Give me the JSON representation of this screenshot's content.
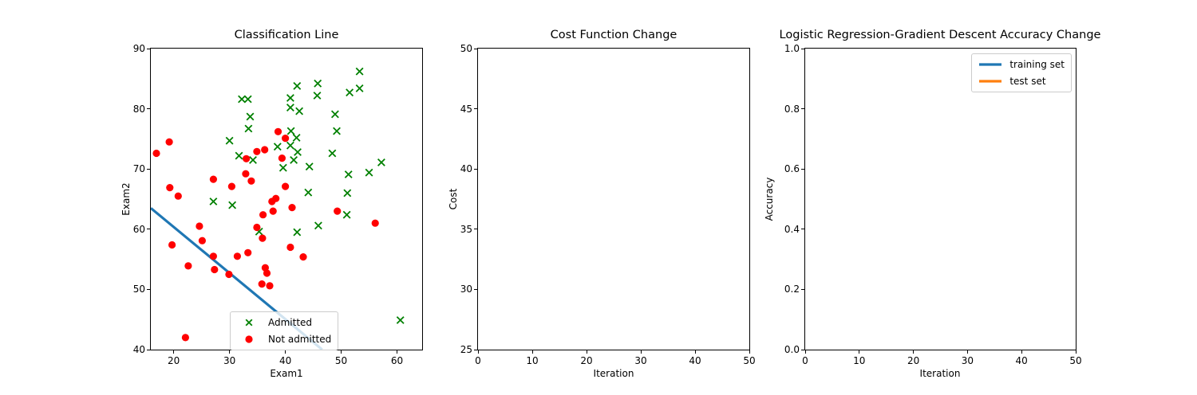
{
  "colors": {
    "admitted": "#008000",
    "not_admitted": "#ff0000",
    "decision_line": "#1f77b4",
    "training_set": "#1f77b4",
    "test_set": "#ff7f0e",
    "axis": "#000000"
  },
  "chart_data": [
    {
      "type": "scatter",
      "title": "Classification Line",
      "xlabel": "Exam1",
      "ylabel": "Exam2",
      "xlim": [
        15.9,
        64.5
      ],
      "ylim": [
        40,
        90
      ],
      "grid": false,
      "xticks": [
        {
          "v": 20,
          "label": "20"
        },
        {
          "v": 30,
          "label": "30"
        },
        {
          "v": 40,
          "label": "40"
        },
        {
          "v": 50,
          "label": "50"
        },
        {
          "v": 60,
          "label": "60"
        }
      ],
      "yticks": [
        {
          "v": 40,
          "label": "40"
        },
        {
          "v": 50,
          "label": "50"
        },
        {
          "v": 60,
          "label": "60"
        },
        {
          "v": 70,
          "label": "70"
        },
        {
          "v": 80,
          "label": "80"
        },
        {
          "v": 90,
          "label": "90"
        }
      ],
      "legend_position": "lower center-right inside",
      "series": [
        {
          "name": "Admitted",
          "marker": "x",
          "color": "#008000",
          "points": [
            [
              53.3,
              86.2
            ],
            [
              45.8,
              84.2
            ],
            [
              42.1,
              83.8
            ],
            [
              51.5,
              82.7
            ],
            [
              53.3,
              83.4
            ],
            [
              45.7,
              82.2
            ],
            [
              32.2,
              81.6
            ],
            [
              33.3,
              81.6
            ],
            [
              40.9,
              81.8
            ],
            [
              40.9,
              80.2
            ],
            [
              42.5,
              79.6
            ],
            [
              48.9,
              79.1
            ],
            [
              33.7,
              78.7
            ],
            [
              33.4,
              76.7
            ],
            [
              49.2,
              76.3
            ],
            [
              41.0,
              76.3
            ],
            [
              30.0,
              74.7
            ],
            [
              42.0,
              75.2
            ],
            [
              40.9,
              73.9
            ],
            [
              38.6,
              73.7
            ],
            [
              42.2,
              72.8
            ],
            [
              48.4,
              72.6
            ],
            [
              31.7,
              72.2
            ],
            [
              34.2,
              71.5
            ],
            [
              41.5,
              71.5
            ],
            [
              39.6,
              70.2
            ],
            [
              44.3,
              70.4
            ],
            [
              57.2,
              71.1
            ],
            [
              55.0,
              69.4
            ],
            [
              51.3,
              69.1
            ],
            [
              44.1,
              66.1
            ],
            [
              51.1,
              66.0
            ],
            [
              27.1,
              64.6
            ],
            [
              30.5,
              64.0
            ],
            [
              51.0,
              62.4
            ],
            [
              45.9,
              60.6
            ],
            [
              42.1,
              59.5
            ],
            [
              35.3,
              59.6
            ],
            [
              60.6,
              44.9
            ]
          ]
        },
        {
          "name": "Not admitted",
          "marker": "circle",
          "color": "#ff0000",
          "points": [
            [
              16.9,
              72.6
            ],
            [
              19.2,
              74.5
            ],
            [
              38.7,
              76.2
            ],
            [
              40.0,
              75.1
            ],
            [
              34.9,
              72.9
            ],
            [
              36.3,
              73.2
            ],
            [
              33.0,
              71.7
            ],
            [
              39.4,
              71.8
            ],
            [
              32.9,
              69.2
            ],
            [
              33.9,
              68.0
            ],
            [
              27.1,
              68.3
            ],
            [
              30.4,
              67.1
            ],
            [
              19.3,
              66.9
            ],
            [
              20.8,
              65.5
            ],
            [
              40.0,
              67.1
            ],
            [
              37.6,
              64.6
            ],
            [
              38.3,
              65.1
            ],
            [
              37.8,
              63.0
            ],
            [
              41.2,
              63.6
            ],
            [
              36.0,
              62.4
            ],
            [
              49.3,
              63.0
            ],
            [
              56.1,
              61.0
            ],
            [
              24.6,
              60.5
            ],
            [
              25.1,
              58.1
            ],
            [
              19.7,
              57.4
            ],
            [
              34.9,
              60.3
            ],
            [
              35.9,
              58.5
            ],
            [
              40.9,
              57.0
            ],
            [
              43.2,
              55.4
            ],
            [
              27.1,
              55.5
            ],
            [
              31.4,
              55.5
            ],
            [
              33.3,
              56.1
            ],
            [
              22.6,
              53.9
            ],
            [
              27.3,
              53.3
            ],
            [
              29.9,
              52.5
            ],
            [
              36.4,
              53.6
            ],
            [
              36.7,
              52.7
            ],
            [
              35.8,
              50.9
            ],
            [
              37.2,
              50.6
            ],
            [
              22.1,
              42.0
            ]
          ]
        }
      ],
      "line": {
        "name": "decision boundary",
        "color": "#1f77b4",
        "points": [
          [
            15.9,
            63.5
          ],
          [
            46.6,
            40.0
          ]
        ]
      }
    },
    {
      "type": "line",
      "title": "Cost Function Change",
      "xlabel": "Iteration",
      "ylabel": "Cost",
      "xlim": [
        0,
        50
      ],
      "ylim": [
        25,
        50
      ],
      "grid": false,
      "xticks": [
        {
          "v": 0,
          "label": "0"
        },
        {
          "v": 10,
          "label": "10"
        },
        {
          "v": 20,
          "label": "20"
        },
        {
          "v": 30,
          "label": "30"
        },
        {
          "v": 40,
          "label": "40"
        },
        {
          "v": 50,
          "label": "50"
        }
      ],
      "yticks": [
        {
          "v": 25,
          "label": "25"
        },
        {
          "v": 30,
          "label": "30"
        },
        {
          "v": 35,
          "label": "35"
        },
        {
          "v": 40,
          "label": "40"
        },
        {
          "v": 45,
          "label": "45"
        },
        {
          "v": 50,
          "label": "50"
        }
      ],
      "series": []
    },
    {
      "type": "line",
      "title": "Logistic Regression-Gradient Descent Accuracy Change",
      "xlabel": "Iteration",
      "ylabel": "Accuracy",
      "xlim": [
        0,
        50
      ],
      "ylim": [
        0.0,
        1.0
      ],
      "grid": false,
      "xticks": [
        {
          "v": 0,
          "label": "0"
        },
        {
          "v": 10,
          "label": "10"
        },
        {
          "v": 20,
          "label": "20"
        },
        {
          "v": 30,
          "label": "30"
        },
        {
          "v": 40,
          "label": "40"
        },
        {
          "v": 50,
          "label": "50"
        }
      ],
      "yticks": [
        {
          "v": 0,
          "label": "0.0"
        },
        {
          "v": 0.2,
          "label": "0.2"
        },
        {
          "v": 0.4,
          "label": "0.4"
        },
        {
          "v": 0.6,
          "label": "0.6"
        },
        {
          "v": 0.8,
          "label": "0.8"
        },
        {
          "v": 1,
          "label": "1.0"
        }
      ],
      "legend_position": "upper right inside",
      "series": [
        {
          "name": "training set",
          "marker": "line",
          "color": "#1f77b4",
          "points": []
        },
        {
          "name": "test set",
          "marker": "line",
          "color": "#ff7f0e",
          "points": []
        }
      ]
    }
  ]
}
